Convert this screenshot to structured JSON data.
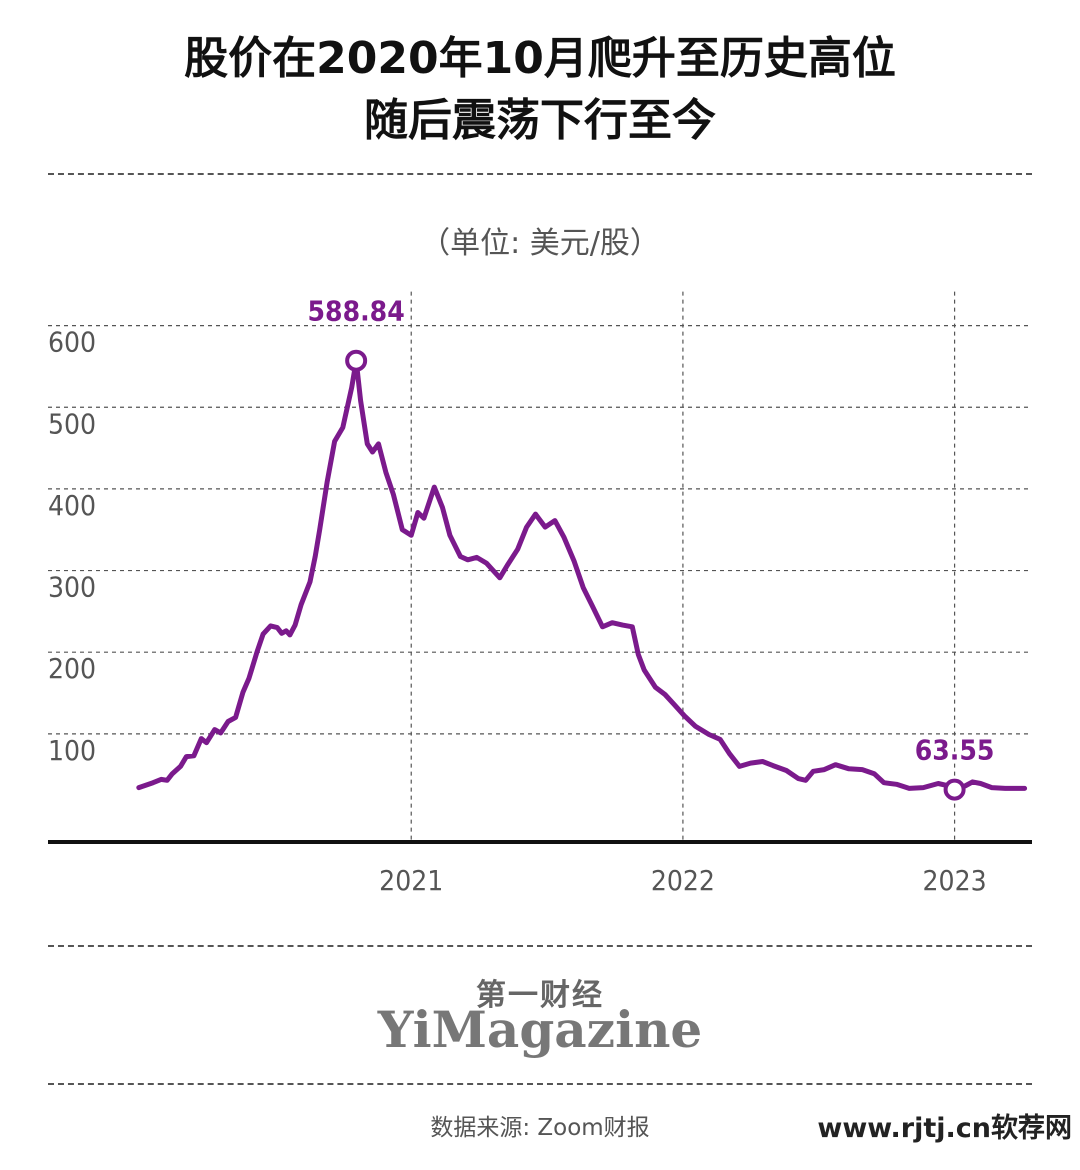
{
  "header": {
    "title_line1": "股价在2020年10月爬升至历史高位",
    "title_line2": "随后震荡下行至今",
    "unit": "（单位: 美元/股）"
  },
  "footer": {
    "brand_cn": "第一财经",
    "brand_en": "YiMagazine",
    "source": "数据来源: Zoom财报",
    "watermark": "www.rjtj.cn软荐网"
  },
  "chart_data": {
    "type": "line",
    "title": "",
    "xlabel": "",
    "ylabel": "",
    "x_ticks": [
      {
        "date": "2021-01-01",
        "label": "2021"
      },
      {
        "date": "2022-01-01",
        "label": "2022"
      },
      {
        "date": "2023-01-01",
        "label": "2023"
      }
    ],
    "y_ticks": [
      100,
      200,
      300,
      400,
      500,
      600
    ],
    "xlim": [
      "2019-09-01",
      "2023-04-15"
    ],
    "ylim": [
      0,
      600
    ],
    "grid": true,
    "color": "#7b1a8c",
    "annotations": [
      {
        "date": "2020-10-19",
        "value": 588.84,
        "label": "588.84"
      },
      {
        "date": "2023-01-01",
        "value": 63.55,
        "label": "63.55"
      }
    ],
    "series": [
      {
        "name": "",
        "points": [
          [
            "2020-01-01",
            66
          ],
          [
            "2020-01-20",
            72
          ],
          [
            "2020-01-31",
            76
          ],
          [
            "2020-02-08",
            75
          ],
          [
            "2020-02-15",
            83
          ],
          [
            "2020-02-26",
            92
          ],
          [
            "2020-03-05",
            104
          ],
          [
            "2020-03-15",
            105
          ],
          [
            "2020-03-25",
            126
          ],
          [
            "2020-04-01",
            121
          ],
          [
            "2020-04-12",
            137
          ],
          [
            "2020-04-20",
            133
          ],
          [
            "2020-04-30",
            147
          ],
          [
            "2020-05-10",
            152
          ],
          [
            "2020-05-20",
            183
          ],
          [
            "2020-05-28",
            200
          ],
          [
            "2020-06-08",
            233
          ],
          [
            "2020-06-16",
            254
          ],
          [
            "2020-06-26",
            264
          ],
          [
            "2020-07-05",
            262
          ],
          [
            "2020-07-11",
            255
          ],
          [
            "2020-07-17",
            258
          ],
          [
            "2020-07-22",
            253
          ],
          [
            "2020-07-29",
            265
          ],
          [
            "2020-08-06",
            290
          ],
          [
            "2020-08-18",
            318
          ],
          [
            "2020-08-25",
            349
          ],
          [
            "2020-08-31",
            382
          ],
          [
            "2020-09-10",
            440
          ],
          [
            "2020-09-20",
            490
          ],
          [
            "2020-10-01",
            507
          ],
          [
            "2020-10-13",
            556
          ],
          [
            "2020-10-19",
            588.84
          ],
          [
            "2020-10-25",
            540
          ],
          [
            "2020-11-03",
            487
          ],
          [
            "2020-11-10",
            477
          ],
          [
            "2020-11-18",
            487
          ],
          [
            "2020-11-28",
            452
          ],
          [
            "2020-12-08",
            425
          ],
          [
            "2020-12-20",
            382
          ],
          [
            "2021-01-01",
            375
          ],
          [
            "2021-01-10",
            403
          ],
          [
            "2021-01-18",
            396
          ],
          [
            "2021-02-01",
            434
          ],
          [
            "2021-02-12",
            409
          ],
          [
            "2021-02-22",
            375
          ],
          [
            "2021-03-08",
            349
          ],
          [
            "2021-03-18",
            345
          ],
          [
            "2021-03-30",
            348
          ],
          [
            "2021-04-12",
            341
          ],
          [
            "2021-04-30",
            323
          ],
          [
            "2021-05-10",
            338
          ],
          [
            "2021-05-24",
            358
          ],
          [
            "2021-06-05",
            385
          ],
          [
            "2021-06-17",
            401
          ],
          [
            "2021-06-30",
            385
          ],
          [
            "2021-07-13",
            393
          ],
          [
            "2021-07-25",
            373
          ],
          [
            "2021-08-08",
            343
          ],
          [
            "2021-08-20",
            311
          ],
          [
            "2021-09-01",
            289
          ],
          [
            "2021-09-15",
            263
          ],
          [
            "2021-09-28",
            268
          ],
          [
            "2021-10-12",
            265
          ],
          [
            "2021-10-25",
            263
          ],
          [
            "2021-11-02",
            229
          ],
          [
            "2021-11-10",
            210
          ],
          [
            "2021-11-25",
            189
          ],
          [
            "2021-12-08",
            180
          ],
          [
            "2021-12-20",
            168
          ],
          [
            "2022-01-03",
            154
          ],
          [
            "2022-01-18",
            141
          ],
          [
            "2022-02-05",
            131
          ],
          [
            "2022-02-20",
            125
          ],
          [
            "2022-03-05",
            107
          ],
          [
            "2022-03-18",
            92
          ],
          [
            "2022-04-02",
            96
          ],
          [
            "2022-04-18",
            98
          ],
          [
            "2022-05-02",
            93
          ],
          [
            "2022-05-20",
            87
          ],
          [
            "2022-06-05",
            77
          ],
          [
            "2022-06-15",
            75
          ],
          [
            "2022-06-25",
            86
          ],
          [
            "2022-07-10",
            88
          ],
          [
            "2022-07-25",
            94
          ],
          [
            "2022-08-12",
            89
          ],
          [
            "2022-08-30",
            88
          ],
          [
            "2022-09-15",
            83
          ],
          [
            "2022-09-28",
            72
          ],
          [
            "2022-10-15",
            70
          ],
          [
            "2022-11-01",
            65
          ],
          [
            "2022-11-20",
            66
          ],
          [
            "2022-12-10",
            71
          ],
          [
            "2022-12-20",
            69
          ],
          [
            "2023-01-01",
            63.55
          ],
          [
            "2023-01-15",
            68
          ],
          [
            "2023-01-25",
            73
          ],
          [
            "2023-02-05",
            71
          ],
          [
            "2023-02-20",
            66
          ],
          [
            "2023-03-10",
            65
          ],
          [
            "2023-04-05",
            65
          ]
        ]
      }
    ]
  }
}
